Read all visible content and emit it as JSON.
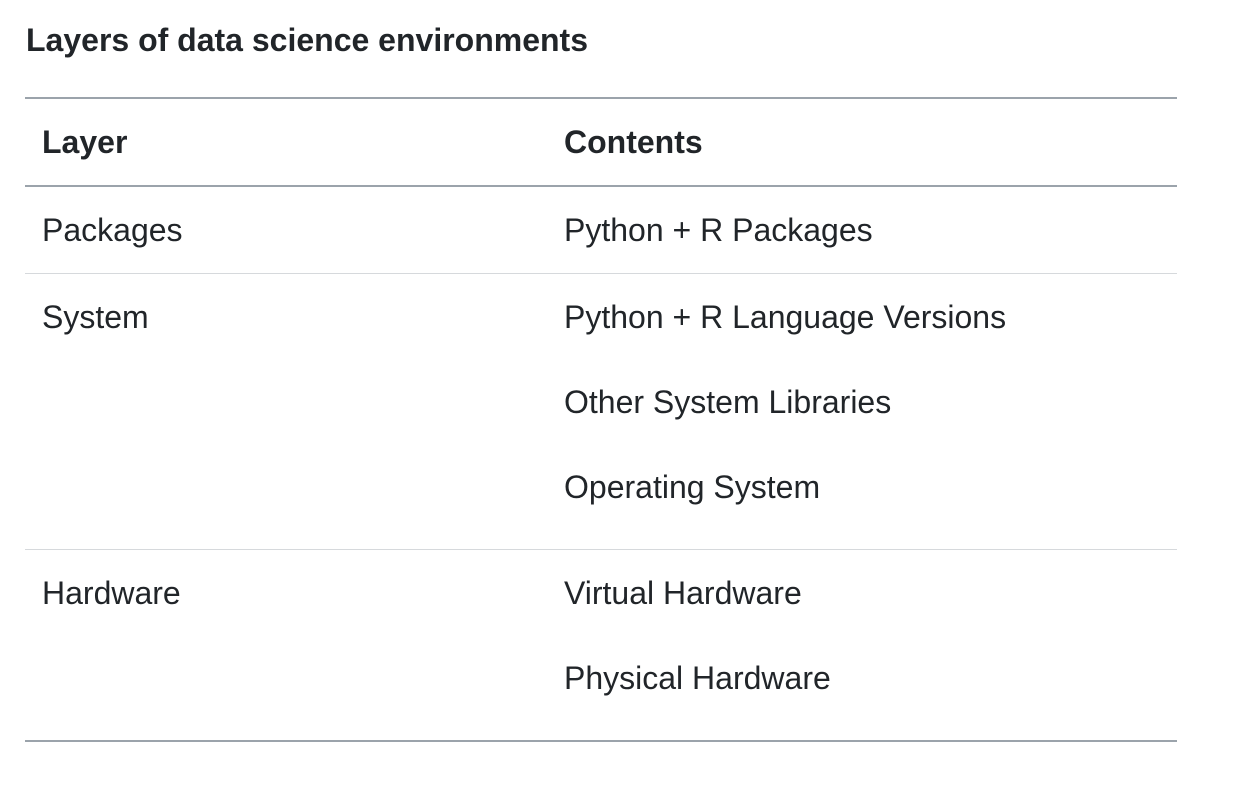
{
  "caption": "Layers of data science environments",
  "table": {
    "headers": {
      "layer": "Layer",
      "contents": "Contents"
    },
    "rows": [
      {
        "layer": "Packages",
        "contents": [
          "Python + R Packages"
        ]
      },
      {
        "layer": "System",
        "contents": [
          "Python + R Language Versions",
          "Other System Libraries",
          "Operating System"
        ]
      },
      {
        "layer": "Hardware",
        "contents": [
          "Virtual Hardware",
          "Physical Hardware"
        ]
      }
    ]
  }
}
